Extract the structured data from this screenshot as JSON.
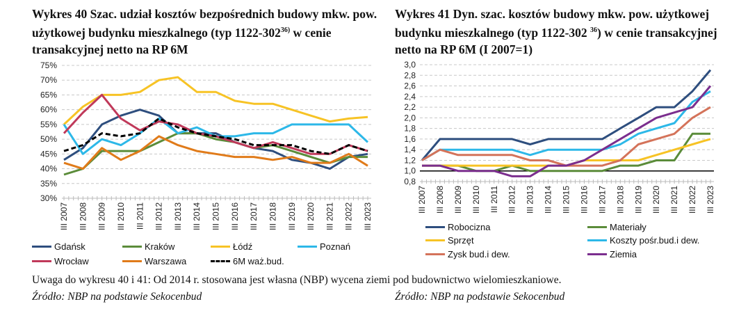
{
  "chart_data": [
    {
      "type": "line",
      "title": "Wykres 40 Szac. udział kosztów bezpośrednich budowy mkw. pow. użytkowej budynku mieszkalnego (typ 1122-302",
      "title_sup": "36)",
      "title_end": " w cenie transakcyjnej netto na RP 6M",
      "categories": [
        "III 2007",
        "III 2008",
        "III 2009",
        "III 2010",
        "III 2011",
        "III 2012",
        "III 2013",
        "III 2014",
        "III 2015",
        "III 2016",
        "III 2017",
        "III 2018",
        "III 2019",
        "III 2020",
        "III 2021",
        "III 2022",
        "III 2023"
      ],
      "y_ticks": [
        "30%",
        "35%",
        "40%",
        "45%",
        "50%",
        "55%",
        "60%",
        "65%",
        "70%",
        "75%"
      ],
      "ylim": [
        30,
        75
      ],
      "yunit": "%",
      "grid": true,
      "legend": "bottom",
      "series": [
        {
          "name": "Gdańsk",
          "color": "#2E4E7E",
          "values": [
            43,
            47,
            55,
            58,
            60,
            58,
            52,
            52,
            52,
            49,
            47,
            46,
            43,
            42,
            40,
            44,
            45
          ]
        },
        {
          "name": "Kraków",
          "color": "#5B8C3A",
          "values": [
            38,
            40,
            46,
            46,
            46,
            49,
            52,
            52,
            50,
            49,
            47,
            48,
            46,
            44,
            42,
            44,
            44
          ]
        },
        {
          "name": "Łódź",
          "color": "#F7C325",
          "values": [
            55,
            61,
            65,
            65,
            66,
            70,
            71,
            66,
            66,
            63,
            62,
            62,
            60,
            58,
            56,
            57,
            57.5
          ]
        },
        {
          "name": "Poznań",
          "color": "#2DB8E8",
          "values": [
            55,
            45,
            50,
            48,
            52,
            57,
            52,
            54,
            51,
            51,
            52,
            52,
            55,
            55,
            55,
            55,
            49
          ]
        },
        {
          "name": "Wrocław",
          "color": "#C0395A",
          "values": [
            52,
            59,
            65,
            57,
            53,
            56,
            55,
            52,
            51,
            49,
            47,
            49,
            47,
            45,
            45,
            48,
            46
          ]
        },
        {
          "name": "Warszawa",
          "color": "#E07B1A",
          "values": [
            42,
            40,
            47,
            43,
            46,
            51,
            48,
            46,
            45,
            44,
            44,
            43,
            44,
            42,
            42,
            45,
            41
          ]
        },
        {
          "name": "6M waż.bud.",
          "color": "#000000",
          "dashed": true,
          "values": [
            46,
            48,
            52,
            51,
            52,
            57,
            54,
            52,
            51,
            50,
            48,
            48,
            48,
            46,
            45,
            48,
            46
          ]
        }
      ]
    },
    {
      "type": "line",
      "title": "Wykres 41 Dyn. szac. kosztów budowy mkw. pow. użytkowej budynku mieszkalnego (typ 1122-302 ",
      "title_sup": "36",
      "title_end": ") w cenie transakcyjnej netto na RP 6M (I 2007=1)",
      "categories": [
        "III 2007",
        "III 2008",
        "III 2009",
        "III 2010",
        "III 2011",
        "III 2012",
        "III 2013",
        "III 2014",
        "III 2015",
        "III 2016",
        "III 2017",
        "III 2018",
        "III 2019",
        "III 2020",
        "III 2021",
        "III 2022",
        "III 2023"
      ],
      "y_ticks": [
        "0,8",
        "1,0",
        "1,2",
        "1,4",
        "1,6",
        "1,8",
        "2,0",
        "2,2",
        "2,4",
        "2,6",
        "2,8",
        "3,0"
      ],
      "ylim": [
        0.8,
        3.0
      ],
      "baseline": 1.0,
      "grid": true,
      "legend": "bottom",
      "series": [
        {
          "name": "Robocizna",
          "color": "#2E4E7E",
          "values": [
            1.2,
            1.6,
            1.6,
            1.6,
            1.6,
            1.6,
            1.5,
            1.6,
            1.6,
            1.6,
            1.6,
            1.8,
            2.0,
            2.2,
            2.2,
            2.5,
            2.9
          ]
        },
        {
          "name": "Materiały",
          "color": "#5B8C3A",
          "values": [
            1.1,
            1.1,
            1.1,
            1.0,
            1.0,
            1.1,
            1.0,
            1.0,
            1.0,
            1.0,
            1.0,
            1.1,
            1.1,
            1.2,
            1.2,
            1.7,
            1.7
          ]
        },
        {
          "name": "Sprzęt",
          "color": "#F7C325",
          "values": [
            1.1,
            1.1,
            1.1,
            1.1,
            1.1,
            1.1,
            1.1,
            1.1,
            1.1,
            1.2,
            1.2,
            1.2,
            1.2,
            1.3,
            1.4,
            1.5,
            1.6
          ]
        },
        {
          "name": "Koszty pośr.bud.i dew.",
          "color": "#2DB8E8",
          "values": [
            1.2,
            1.4,
            1.4,
            1.4,
            1.4,
            1.4,
            1.3,
            1.4,
            1.4,
            1.4,
            1.4,
            1.5,
            1.7,
            1.8,
            1.9,
            2.3,
            2.5
          ]
        },
        {
          "name": "Zysk bud.i dew.",
          "color": "#D4735A",
          "values": [
            1.2,
            1.4,
            1.3,
            1.3,
            1.3,
            1.3,
            1.2,
            1.2,
            1.1,
            1.1,
            1.1,
            1.2,
            1.5,
            1.6,
            1.7,
            2.0,
            2.2
          ]
        },
        {
          "name": "Ziemia",
          "color": "#7B2E8E",
          "values": [
            1.1,
            1.1,
            1.0,
            1.0,
            1.0,
            0.9,
            0.9,
            1.1,
            1.1,
            1.2,
            1.4,
            1.6,
            1.8,
            2.0,
            2.1,
            2.2,
            2.6
          ]
        }
      ]
    }
  ],
  "footer": {
    "note": "Uwaga do wykresu 40 i 41: Od 2014 r. stosowana jest własna (NBP) wycena ziemi pod budownictwo wielomieszkaniowe.",
    "source_left": "Źródło: NBP na podstawie Sekocenbud",
    "source_right": "Źródło: NBP na podstawie Sekocenbud"
  }
}
